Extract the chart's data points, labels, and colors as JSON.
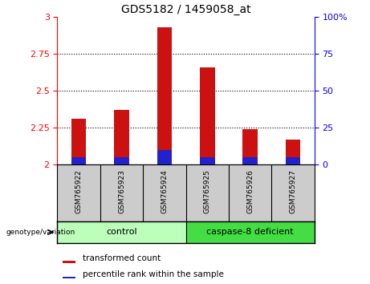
{
  "title": "GDS5182 / 1459058_at",
  "samples": [
    "GSM765922",
    "GSM765923",
    "GSM765924",
    "GSM765925",
    "GSM765926",
    "GSM765927"
  ],
  "transformed_count": [
    2.31,
    2.37,
    2.93,
    2.66,
    2.24,
    2.17
  ],
  "percentile_rank_height": [
    0.05,
    0.05,
    0.1,
    0.05,
    0.05,
    0.05
  ],
  "ylim_left": [
    2.0,
    3.0
  ],
  "ylim_right": [
    0,
    100
  ],
  "yticks_left": [
    2.0,
    2.25,
    2.5,
    2.75,
    3.0
  ],
  "yticks_left_labels": [
    "2",
    "2.25",
    "2.5",
    "2.75",
    "3"
  ],
  "yticks_right": [
    0,
    25,
    50,
    75,
    100
  ],
  "yticks_right_labels": [
    "0",
    "25",
    "50",
    "75",
    "100%"
  ],
  "bar_base": 2.0,
  "bar_width": 0.35,
  "red_color": "#cc1111",
  "blue_color": "#2222cc",
  "control_color": "#bbffbb",
  "deficient_color": "#44dd44",
  "legend_transformed": "transformed count",
  "legend_percentile": "percentile rank within the sample",
  "bg_sample": "#cccccc",
  "dotted_lines": [
    2.25,
    2.5,
    2.75
  ],
  "group_ctrl_label": "control",
  "group_def_label": "caspase-8 deficient",
  "genotype_label": "genotype/variation"
}
